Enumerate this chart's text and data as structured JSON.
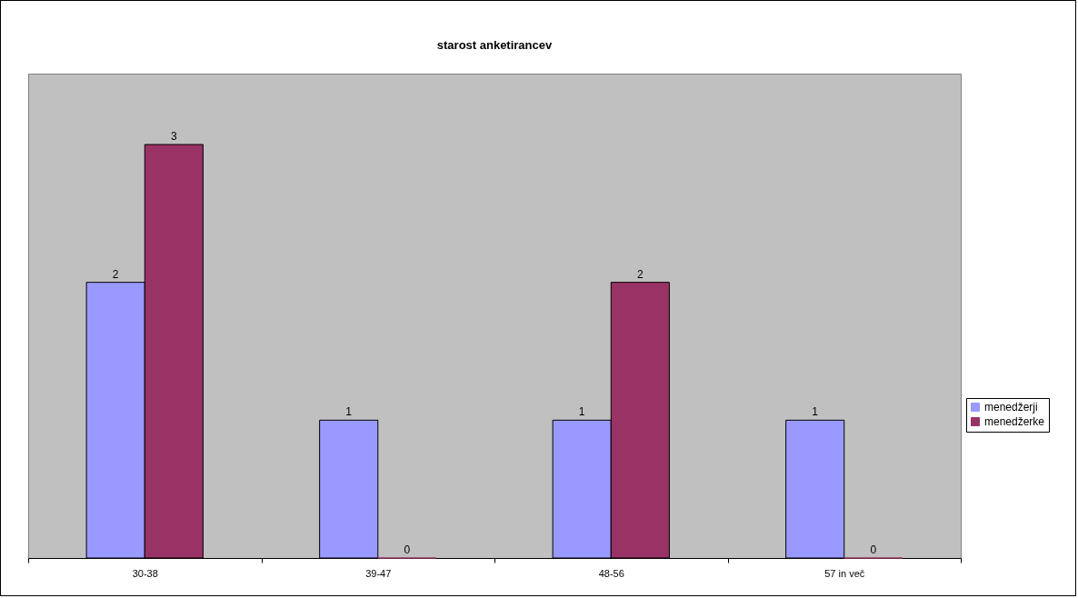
{
  "chart_data": {
    "type": "bar",
    "title": "starost anketirancev",
    "categories": [
      "30-38",
      "39-47",
      "48-56",
      "57 in več"
    ],
    "series": [
      {
        "name": "menedžerji",
        "color": "#9999ff",
        "values": [
          2,
          1,
          1,
          1
        ]
      },
      {
        "name": "menedžerke",
        "color": "#993366",
        "values": [
          3,
          0,
          2,
          0
        ]
      }
    ],
    "data_labels": true,
    "legend": "right",
    "grid": false
  }
}
